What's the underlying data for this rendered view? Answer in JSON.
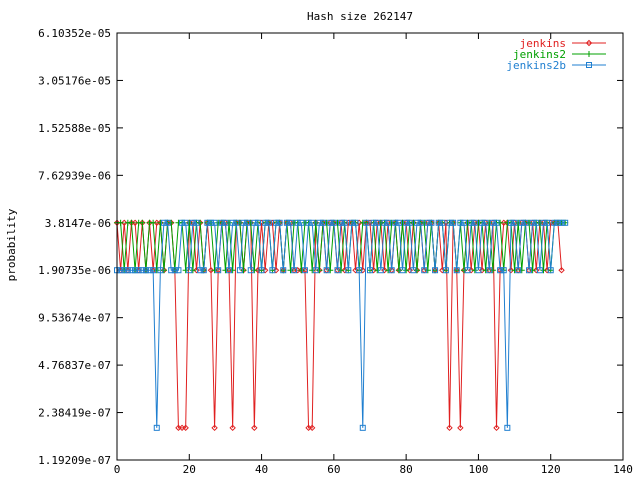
{
  "chart_data": {
    "type": "line",
    "title": "Hash size 262147",
    "xlabel": "",
    "ylabel": "probability",
    "xlim": [
      0,
      140
    ],
    "x_ticks": [
      0,
      20,
      40,
      60,
      80,
      100,
      120,
      140
    ],
    "y_scale": "log2",
    "y_tick_values": [
      1.19209e-07,
      2.38419e-07,
      4.76837e-07,
      9.53674e-07,
      1.90735e-06,
      3.8147e-06,
      7.62939e-06,
      1.52588e-05,
      3.05176e-05,
      6.10352e-05
    ],
    "y_tick_labels": [
      "1.19209e-07",
      "2.38419e-07",
      "4.76837e-07",
      "9.53674e-07",
      "1.90735e-06",
      "3.8147e-06",
      "7.62939e-06",
      "1.52588e-05",
      "3.05176e-05",
      "6.10352e-05"
    ],
    "legend_position": "top-right",
    "series": [
      {
        "name": "jenkins",
        "color": "#e02020",
        "marker": "diamond",
        "x": [
          0,
          1,
          2,
          3,
          4,
          5,
          6,
          7,
          8,
          9,
          10,
          11,
          12,
          13,
          14,
          15,
          16,
          17,
          18,
          19,
          20,
          21,
          22,
          23,
          24,
          25,
          26,
          27,
          28,
          29,
          30,
          31,
          32,
          33,
          34,
          35,
          36,
          37,
          38,
          39,
          40,
          41,
          42,
          43,
          44,
          45,
          46,
          47,
          48,
          49,
          50,
          51,
          52,
          53,
          54,
          55,
          56,
          57,
          58,
          59,
          60,
          61,
          62,
          63,
          64,
          65,
          66,
          67,
          68,
          69,
          70,
          71,
          72,
          73,
          74,
          75,
          76,
          77,
          78,
          79,
          80,
          81,
          82,
          83,
          84,
          85,
          86,
          87,
          88,
          89,
          90,
          91,
          92,
          93,
          94,
          95,
          96,
          97,
          98,
          99,
          100,
          101,
          102,
          103,
          104,
          105,
          106,
          107,
          108,
          109,
          110,
          111,
          112,
          113,
          114,
          115,
          116,
          117,
          118,
          119,
          120,
          121,
          122,
          123
        ],
        "y": [
          3.8147e-06,
          1.90735e-06,
          3.8147e-06,
          1.90735e-06,
          3.8147e-06,
          3.8147e-06,
          1.90735e-06,
          3.8147e-06,
          1.90735e-06,
          3.8147e-06,
          1.90735e-06,
          3.8147e-06,
          3.8147e-06,
          1.90735e-06,
          3.8147e-06,
          3.8147e-06,
          1.90735e-06,
          1.90735e-07,
          1.90735e-07,
          1.90735e-07,
          3.8147e-06,
          3.8147e-06,
          1.90735e-06,
          3.8147e-06,
          1.90735e-06,
          3.8147e-06,
          1.90735e-06,
          1.90735e-07,
          1.90735e-06,
          3.8147e-06,
          3.8147e-06,
          1.90735e-06,
          1.90735e-07,
          3.8147e-06,
          3.8147e-06,
          1.90735e-06,
          3.8147e-06,
          3.8147e-06,
          1.90735e-07,
          1.90735e-06,
          3.8147e-06,
          1.90735e-06,
          3.8147e-06,
          3.8147e-06,
          1.90735e-06,
          3.8147e-06,
          1.90735e-06,
          3.8147e-06,
          3.8147e-06,
          1.90735e-06,
          1.90735e-06,
          1.90735e-06,
          1.90735e-06,
          1.90735e-07,
          1.90735e-07,
          3.8147e-06,
          1.90735e-06,
          3.8147e-06,
          1.90735e-06,
          3.8147e-06,
          3.8147e-06,
          1.90735e-06,
          3.8147e-06,
          1.90735e-06,
          3.8147e-06,
          3.8147e-06,
          1.90735e-06,
          3.8147e-06,
          1.90735e-06,
          3.8147e-06,
          3.8147e-06,
          1.90735e-06,
          3.8147e-06,
          3.8147e-06,
          1.90735e-06,
          3.8147e-06,
          1.90735e-06,
          3.8147e-06,
          1.90735e-06,
          3.8147e-06,
          3.8147e-06,
          1.90735e-06,
          3.8147e-06,
          1.90735e-06,
          3.8147e-06,
          1.90735e-06,
          3.8147e-06,
          3.8147e-06,
          1.90735e-06,
          3.8147e-06,
          1.90735e-06,
          3.8147e-06,
          1.90735e-07,
          3.8147e-06,
          1.90735e-06,
          1.90735e-07,
          1.90735e-06,
          3.8147e-06,
          1.90735e-06,
          3.8147e-06,
          3.8147e-06,
          1.90735e-06,
          3.8147e-06,
          1.90735e-06,
          3.8147e-06,
          1.90735e-07,
          1.90735e-06,
          3.8147e-06,
          3.8147e-06,
          1.90735e-06,
          3.8147e-06,
          1.90735e-06,
          3.8147e-06,
          3.8147e-06,
          1.90735e-06,
          3.8147e-06,
          1.90735e-06,
          3.8147e-06,
          3.8147e-06,
          1.90735e-06,
          3.8147e-06,
          3.8147e-06,
          3.8147e-06,
          1.90735e-06
        ]
      },
      {
        "name": "jenkins2",
        "color": "#00a000",
        "marker": "plus",
        "x": [
          0,
          1,
          2,
          3,
          4,
          5,
          6,
          7,
          8,
          9,
          10,
          11,
          12,
          13,
          14,
          15,
          16,
          17,
          18,
          19,
          20,
          21,
          22,
          23,
          24,
          25,
          26,
          27,
          28,
          29,
          30,
          31,
          32,
          33,
          34,
          35,
          36,
          37,
          38,
          39,
          40,
          41,
          42,
          43,
          44,
          45,
          46,
          47,
          48,
          49,
          50,
          51,
          52,
          53,
          54,
          55,
          56,
          57,
          58,
          59,
          60,
          61,
          62,
          63,
          64,
          65,
          66,
          67,
          68,
          69,
          70,
          71,
          72,
          73,
          74,
          75,
          76,
          77,
          78,
          79,
          80,
          81,
          82,
          83,
          84,
          85,
          86,
          87,
          88,
          89,
          90,
          91,
          92,
          93,
          94,
          95,
          96,
          97,
          98,
          99,
          100,
          101,
          102,
          103,
          104,
          105,
          106,
          107,
          108,
          109,
          110,
          111,
          112,
          113,
          114,
          115,
          116,
          117,
          118,
          119,
          120,
          121,
          122,
          123,
          124
        ],
        "y": [
          3.8147e-06,
          3.8147e-06,
          1.90735e-06,
          3.8147e-06,
          3.8147e-06,
          1.90735e-06,
          3.8147e-06,
          3.8147e-06,
          1.90735e-06,
          3.8147e-06,
          3.8147e-06,
          1.90735e-06,
          3.8147e-06,
          1.90735e-06,
          3.8147e-06,
          3.8147e-06,
          1.90735e-06,
          3.8147e-06,
          3.8147e-06,
          1.90735e-06,
          3.8147e-06,
          1.90735e-06,
          3.8147e-06,
          3.8147e-06,
          1.90735e-06,
          3.8147e-06,
          3.8147e-06,
          1.90735e-06,
          3.8147e-06,
          3.8147e-06,
          1.90735e-06,
          3.8147e-06,
          1.90735e-06,
          3.8147e-06,
          3.8147e-06,
          1.90735e-06,
          3.8147e-06,
          3.8147e-06,
          1.90735e-06,
          3.8147e-06,
          1.90735e-06,
          3.8147e-06,
          3.8147e-06,
          1.90735e-06,
          3.8147e-06,
          3.8147e-06,
          1.90735e-06,
          3.8147e-06,
          1.90735e-06,
          3.8147e-06,
          3.8147e-06,
          1.90735e-06,
          3.8147e-06,
          3.8147e-06,
          1.90735e-06,
          3.8147e-06,
          1.90735e-06,
          3.8147e-06,
          3.8147e-06,
          1.90735e-06,
          3.8147e-06,
          3.8147e-06,
          1.90735e-06,
          3.8147e-06,
          1.90735e-06,
          3.8147e-06,
          3.8147e-06,
          1.90735e-06,
          3.8147e-06,
          3.8147e-06,
          1.90735e-06,
          3.8147e-06,
          1.90735e-06,
          3.8147e-06,
          3.8147e-06,
          1.90735e-06,
          3.8147e-06,
          3.8147e-06,
          1.90735e-06,
          3.8147e-06,
          1.90735e-06,
          3.8147e-06,
          3.8147e-06,
          1.90735e-06,
          3.8147e-06,
          3.8147e-06,
          1.90735e-06,
          3.8147e-06,
          1.90735e-06,
          3.8147e-06,
          3.8147e-06,
          1.90735e-06,
          3.8147e-06,
          3.8147e-06,
          1.90735e-06,
          3.8147e-06,
          1.90735e-06,
          3.8147e-06,
          3.8147e-06,
          1.90735e-06,
          3.8147e-06,
          3.8147e-06,
          1.90735e-06,
          3.8147e-06,
          1.90735e-06,
          3.8147e-06,
          3.8147e-06,
          1.90735e-06,
          3.8147e-06,
          3.8147e-06,
          1.90735e-06,
          3.8147e-06,
          1.90735e-06,
          3.8147e-06,
          3.8147e-06,
          1.90735e-06,
          3.8147e-06,
          3.8147e-06,
          1.90735e-06,
          3.8147e-06,
          1.90735e-06,
          3.8147e-06,
          3.8147e-06,
          3.8147e-06,
          3.8147e-06
        ]
      },
      {
        "name": "jenkins2b",
        "color": "#1f7fd0",
        "marker": "square",
        "x": [
          0,
          1,
          2,
          3,
          4,
          5,
          6,
          7,
          8,
          9,
          10,
          11,
          12,
          13,
          14,
          15,
          16,
          17,
          18,
          19,
          20,
          21,
          22,
          23,
          24,
          25,
          26,
          27,
          28,
          29,
          30,
          31,
          32,
          33,
          34,
          35,
          36,
          37,
          38,
          39,
          40,
          41,
          42,
          43,
          44,
          45,
          46,
          47,
          48,
          49,
          50,
          51,
          52,
          53,
          54,
          55,
          56,
          57,
          58,
          59,
          60,
          61,
          62,
          63,
          64,
          65,
          66,
          67,
          68,
          69,
          70,
          71,
          72,
          73,
          74,
          75,
          76,
          77,
          78,
          79,
          80,
          81,
          82,
          83,
          84,
          85,
          86,
          87,
          88,
          89,
          90,
          91,
          92,
          93,
          94,
          95,
          96,
          97,
          98,
          99,
          100,
          101,
          102,
          103,
          104,
          105,
          106,
          107,
          108,
          109,
          110,
          111,
          112,
          113,
          114,
          115,
          116,
          117,
          118,
          119,
          120,
          121,
          122,
          123,
          124
        ],
        "y": [
          1.90735e-06,
          1.90735e-06,
          1.90735e-06,
          1.90735e-06,
          1.90735e-06,
          1.90735e-06,
          1.90735e-06,
          1.90735e-06,
          1.90735e-06,
          1.90735e-06,
          1.90735e-06,
          1.90735e-07,
          1.90735e-06,
          3.8147e-06,
          3.8147e-06,
          1.90735e-06,
          1.90735e-06,
          1.90735e-06,
          3.8147e-06,
          3.8147e-06,
          1.90735e-06,
          3.8147e-06,
          3.8147e-06,
          1.90735e-06,
          1.90735e-06,
          3.8147e-06,
          3.8147e-06,
          3.8147e-06,
          1.90735e-06,
          3.8147e-06,
          3.8147e-06,
          1.90735e-06,
          3.8147e-06,
          3.8147e-06,
          1.90735e-06,
          3.8147e-06,
          3.8147e-06,
          1.90735e-06,
          3.8147e-06,
          3.8147e-06,
          1.90735e-06,
          3.8147e-06,
          3.8147e-06,
          1.90735e-06,
          3.8147e-06,
          3.8147e-06,
          1.90735e-06,
          3.8147e-06,
          3.8147e-06,
          1.90735e-06,
          3.8147e-06,
          3.8147e-06,
          1.90735e-06,
          3.8147e-06,
          3.8147e-06,
          1.90735e-06,
          3.8147e-06,
          3.8147e-06,
          1.90735e-06,
          3.8147e-06,
          3.8147e-06,
          1.90735e-06,
          3.8147e-06,
          3.8147e-06,
          1.90735e-06,
          3.8147e-06,
          3.8147e-06,
          1.90735e-06,
          1.90735e-07,
          3.8147e-06,
          1.90735e-06,
          3.8147e-06,
          3.8147e-06,
          1.90735e-06,
          3.8147e-06,
          3.8147e-06,
          1.90735e-06,
          3.8147e-06,
          3.8147e-06,
          1.90735e-06,
          3.8147e-06,
          3.8147e-06,
          1.90735e-06,
          3.8147e-06,
          3.8147e-06,
          1.90735e-06,
          3.8147e-06,
          3.8147e-06,
          1.90735e-06,
          3.8147e-06,
          3.8147e-06,
          1.90735e-06,
          3.8147e-06,
          3.8147e-06,
          1.90735e-06,
          3.8147e-06,
          3.8147e-06,
          1.90735e-06,
          3.8147e-06,
          3.8147e-06,
          1.90735e-06,
          3.8147e-06,
          3.8147e-06,
          1.90735e-06,
          3.8147e-06,
          3.8147e-06,
          1.90735e-06,
          1.90735e-06,
          1.90735e-07,
          3.8147e-06,
          3.8147e-06,
          1.90735e-06,
          3.8147e-06,
          3.8147e-06,
          1.90735e-06,
          3.8147e-06,
          3.8147e-06,
          1.90735e-06,
          3.8147e-06,
          3.8147e-06,
          1.90735e-06,
          3.8147e-06,
          3.8147e-06,
          3.8147e-06,
          3.8147e-06
        ]
      }
    ]
  }
}
